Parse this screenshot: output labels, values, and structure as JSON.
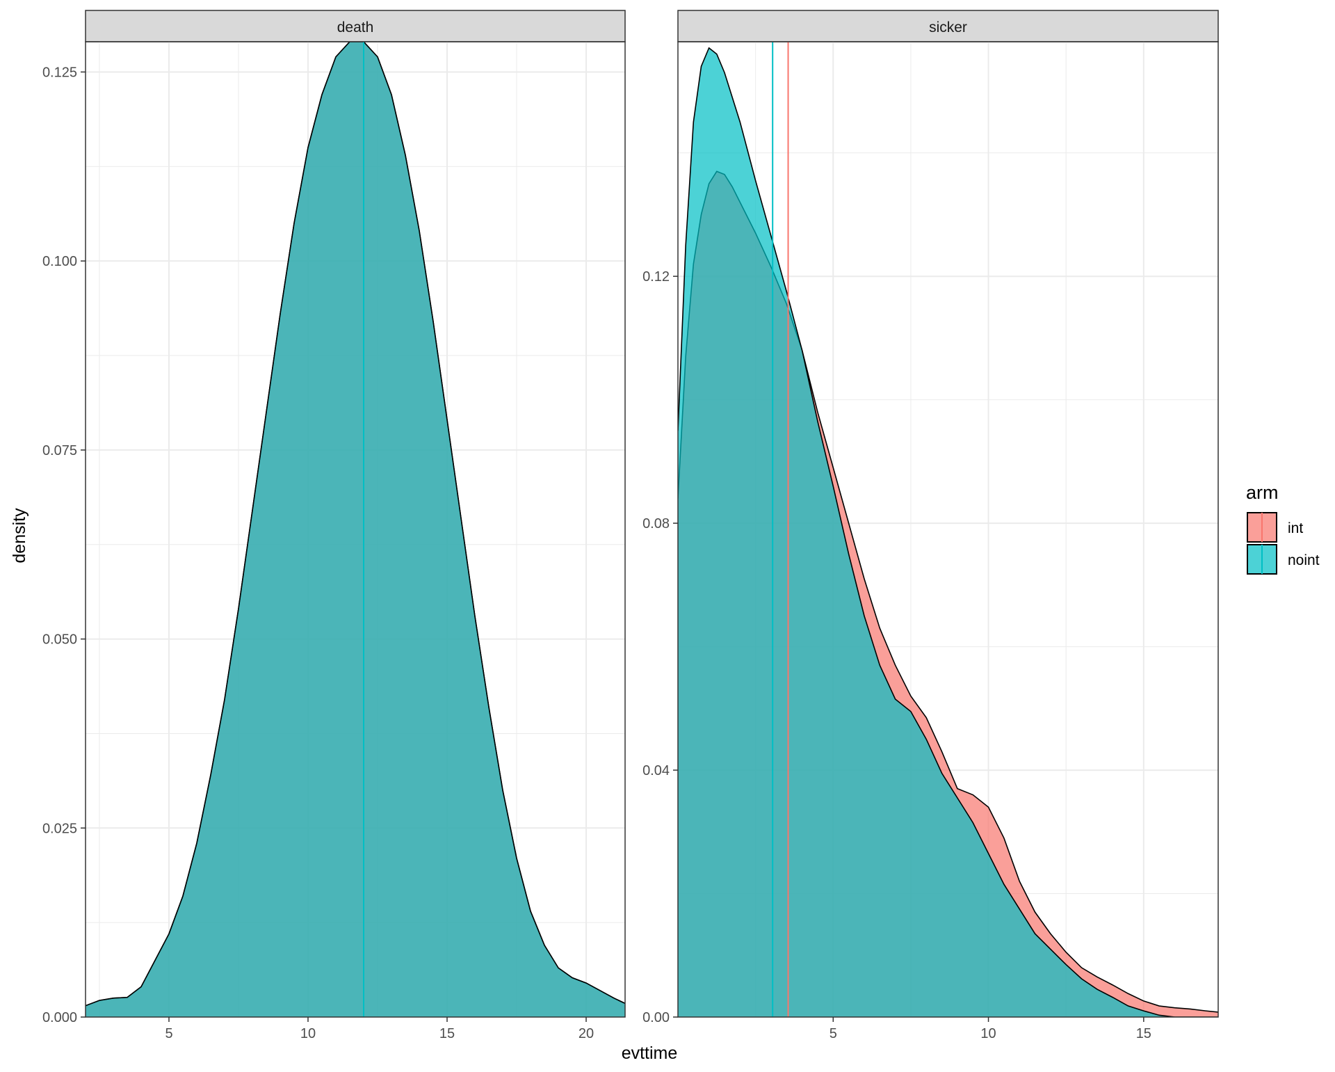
{
  "chart_data": {
    "type": "area",
    "xlabel": "evttime",
    "ylabel": "density",
    "legend": {
      "title": "arm",
      "placement": "right",
      "entries": [
        {
          "name": "int",
          "color": "#F8766D"
        },
        {
          "name": "noint",
          "color": "#00BFC4"
        }
      ]
    },
    "colors": {
      "int": "#F8766D",
      "noint": "#00BFC4",
      "outline": "#000000",
      "strip_bg": "#d9d9d9",
      "grid": "#ebebeb"
    },
    "grid": true,
    "panels": [
      {
        "strip": "death",
        "xlim": [
          2.0,
          21.4
        ],
        "ylim": [
          0,
          0.129
        ],
        "x_ticks": [
          5,
          10,
          15,
          20
        ],
        "x_tick_labels": [
          "5",
          "10",
          "15",
          "20"
        ],
        "y_ticks": [
          0.0,
          0.025,
          0.05,
          0.075,
          0.1,
          0.125
        ],
        "y_tick_labels": [
          "0.000",
          "0.025",
          "0.050",
          "0.075",
          "0.100",
          "0.125"
        ],
        "series": [
          {
            "name": "int",
            "x": [
              2.0,
              2.5,
              3.0,
              3.5,
              4.0,
              4.5,
              5.0,
              5.5,
              6.0,
              6.5,
              7.0,
              7.5,
              8.0,
              8.5,
              9.0,
              9.5,
              10.0,
              10.5,
              11.0,
              11.5,
              12.0,
              12.5,
              13.0,
              13.5,
              14.0,
              14.5,
              15.0,
              15.5,
              16.0,
              16.5,
              17.0,
              17.5,
              18.0,
              18.5,
              19.0,
              19.5,
              20.0,
              20.5,
              21.0,
              21.4
            ],
            "y": [
              0.0015,
              0.0022,
              0.0025,
              0.0026,
              0.004,
              0.0075,
              0.011,
              0.016,
              0.023,
              0.032,
              0.042,
              0.054,
              0.067,
              0.08,
              0.093,
              0.105,
              0.115,
              0.122,
              0.127,
              0.129,
              0.129,
              0.127,
              0.122,
              0.114,
              0.104,
              0.092,
              0.079,
              0.066,
              0.053,
              0.041,
              0.03,
              0.021,
              0.014,
              0.0095,
              0.0065,
              0.0052,
              0.0045,
              0.0035,
              0.0025,
              0.0018
            ]
          },
          {
            "name": "noint",
            "x": [
              2.0,
              2.5,
              3.0,
              3.5,
              4.0,
              4.5,
              5.0,
              5.5,
              6.0,
              6.5,
              7.0,
              7.5,
              8.0,
              8.5,
              9.0,
              9.5,
              10.0,
              10.5,
              11.0,
              11.5,
              12.0,
              12.5,
              13.0,
              13.5,
              14.0,
              14.5,
              15.0,
              15.5,
              16.0,
              16.5,
              17.0,
              17.5,
              18.0,
              18.5,
              19.0,
              19.5,
              20.0,
              20.5,
              21.0,
              21.4
            ],
            "y": [
              0.0015,
              0.0022,
              0.0025,
              0.0026,
              0.004,
              0.0075,
              0.011,
              0.016,
              0.023,
              0.032,
              0.042,
              0.054,
              0.067,
              0.08,
              0.093,
              0.105,
              0.115,
              0.122,
              0.127,
              0.129,
              0.129,
              0.127,
              0.122,
              0.114,
              0.104,
              0.092,
              0.079,
              0.066,
              0.053,
              0.041,
              0.03,
              0.021,
              0.014,
              0.0095,
              0.0065,
              0.0052,
              0.0045,
              0.0035,
              0.0025,
              0.0018
            ]
          }
        ],
        "vlines": [
          {
            "name": "int",
            "x": 12.0
          },
          {
            "name": "noint",
            "x": 12.0
          }
        ]
      },
      {
        "strip": "sicker",
        "xlim": [
          0.0,
          17.4
        ],
        "ylim": [
          0,
          0.158
        ],
        "x_ticks": [
          5,
          10,
          15
        ],
        "x_tick_labels": [
          "5",
          "10",
          "15"
        ],
        "y_ticks": [
          0.0,
          0.04,
          0.08,
          0.12
        ],
        "y_tick_labels": [
          "0.00",
          "0.04",
          "0.08",
          "0.12"
        ],
        "series": [
          {
            "name": "int",
            "x": [
              0.0,
              0.25,
              0.5,
              0.75,
              1.0,
              1.25,
              1.5,
              1.75,
              2.0,
              2.5,
              3.0,
              3.5,
              4.0,
              4.5,
              5.0,
              5.5,
              6.0,
              6.5,
              7.0,
              7.5,
              8.0,
              8.5,
              9.0,
              9.5,
              10.0,
              10.5,
              11.0,
              11.5,
              12.0,
              12.5,
              13.0,
              13.5,
              14.0,
              14.5,
              15.0,
              15.5,
              16.0,
              16.5,
              17.0,
              17.4
            ],
            "y": [
              0.084,
              0.107,
              0.122,
              0.13,
              0.135,
              0.137,
              0.1365,
              0.1345,
              0.132,
              0.127,
              0.1215,
              0.1155,
              0.108,
              0.098,
              0.089,
              0.08,
              0.071,
              0.063,
              0.057,
              0.052,
              0.0485,
              0.043,
              0.037,
              0.036,
              0.034,
              0.029,
              0.022,
              0.017,
              0.0135,
              0.0105,
              0.008,
              0.0065,
              0.0052,
              0.0038,
              0.0026,
              0.0018,
              0.0015,
              0.0013,
              0.001,
              0.0008
            ]
          },
          {
            "name": "noint",
            "x": [
              0.0,
              0.25,
              0.5,
              0.75,
              1.0,
              1.25,
              1.5,
              1.75,
              2.0,
              2.5,
              3.0,
              3.5,
              4.0,
              4.5,
              5.0,
              5.5,
              6.0,
              6.5,
              7.0,
              7.5,
              8.0,
              8.5,
              9.0,
              9.5,
              10.0,
              10.5,
              11.0,
              11.5,
              12.0,
              12.5,
              13.0,
              13.5,
              14.0,
              14.5,
              15.0,
              15.5,
              16.0,
              16.5,
              17.0,
              17.4
            ],
            "y": [
              0.095,
              0.125,
              0.145,
              0.154,
              0.157,
              0.156,
              0.153,
              0.149,
              0.145,
              0.1355,
              0.1265,
              0.1175,
              0.108,
              0.0965,
              0.086,
              0.075,
              0.065,
              0.057,
              0.0515,
              0.0495,
              0.045,
              0.0395,
              0.0355,
              0.0315,
              0.0265,
              0.0215,
              0.0175,
              0.0135,
              0.011,
              0.0085,
              0.0062,
              0.0045,
              0.0032,
              0.0018,
              0.001,
              0.0003,
              0.0,
              0.0,
              0.0,
              0.0
            ]
          }
        ],
        "vlines": [
          {
            "name": "int",
            "x": 3.55
          },
          {
            "name": "noint",
            "x": 3.05
          }
        ]
      }
    ]
  }
}
